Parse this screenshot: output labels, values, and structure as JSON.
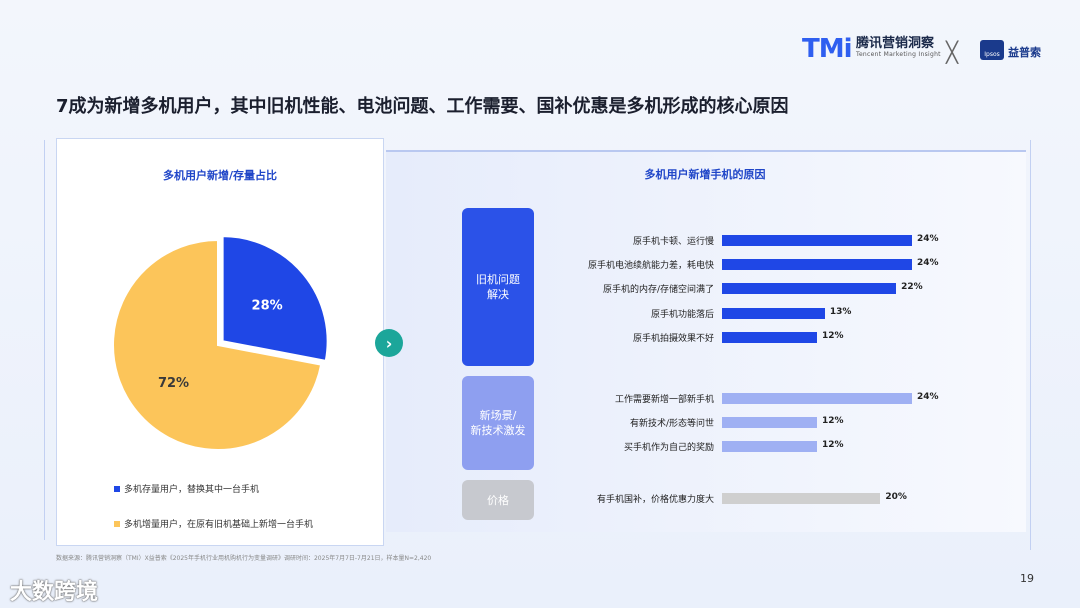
{
  "header": {
    "tmi_mark": "TMi",
    "tmi_cn": "腾讯营销洞察",
    "tmi_en": "Tencent Marketing Insight",
    "separator": "╳",
    "ipsos_mark": "Ipsos",
    "ipsos_cn": "益普索"
  },
  "title": "7成为新增多机用户，其中旧机性能、电池问题、工作需要、国补优惠是多机形成的核心原因",
  "colors": {
    "blue": "#1f47e6",
    "yellow": "#fcc55a",
    "light_blue": "#9fb0f3",
    "gray": "#cfcfcf",
    "teal": "#1ca69a"
  },
  "arrow_icon": "›",
  "chart_data": [
    {
      "type": "pie",
      "title": "多机用户新增/存量占比",
      "slices": [
        {
          "label": "多机存量用户，替换其中一台手机",
          "value": 28,
          "display": "28%",
          "color": "#1f47e6"
        },
        {
          "label": "多机增量用户，在原有旧机基础上新增一台手机",
          "value": 72,
          "display": "72%",
          "color": "#fcc55a"
        }
      ],
      "legend": "bottom"
    },
    {
      "type": "bar",
      "orientation": "horizontal",
      "title": "多机用户新增手机的原因",
      "xlim": [
        0,
        24
      ],
      "groups": [
        {
          "name": "旧机问题\n解决",
          "color": "#1f47e6",
          "box_color": "#2b52e8",
          "items": [
            {
              "label": "原手机卡顿、运行慢",
              "value": 24,
              "display": "24%"
            },
            {
              "label": "原手机电池续航能力差，耗电快",
              "value": 24,
              "display": "24%"
            },
            {
              "label": "原手机的内存/存储空间满了",
              "value": 22,
              "display": "22%"
            },
            {
              "label": "原手机功能落后",
              "value": 13,
              "display": "13%"
            },
            {
              "label": "原手机拍摄效果不好",
              "value": 12,
              "display": "12%"
            }
          ]
        },
        {
          "name": "新场景/\n新技术激发",
          "color": "#9fb0f3",
          "box_color": "#8e9ff0",
          "items": [
            {
              "label": "工作需要新增一部新手机",
              "value": 24,
              "display": "24%"
            },
            {
              "label": "有新技术/形态等问世",
              "value": 12,
              "display": "12%"
            },
            {
              "label": "买手机作为自己的奖励",
              "value": 12,
              "display": "12%"
            }
          ]
        },
        {
          "name": "价格",
          "color": "#cfcfcf",
          "box_color": "#c7c9cf",
          "items": [
            {
              "label": "有手机国补，价格优惠力度大",
              "value": 20,
              "display": "20%"
            }
          ]
        }
      ]
    }
  ],
  "footer": {
    "source": "数据来源：腾讯营销洞察（TMI）X益普索《2025年手机行业用机购机行为变量调研》调研时间：2025年7月7日-7月21日，样本量N=2,420",
    "page": "19",
    "watermark": "大数跨境"
  }
}
